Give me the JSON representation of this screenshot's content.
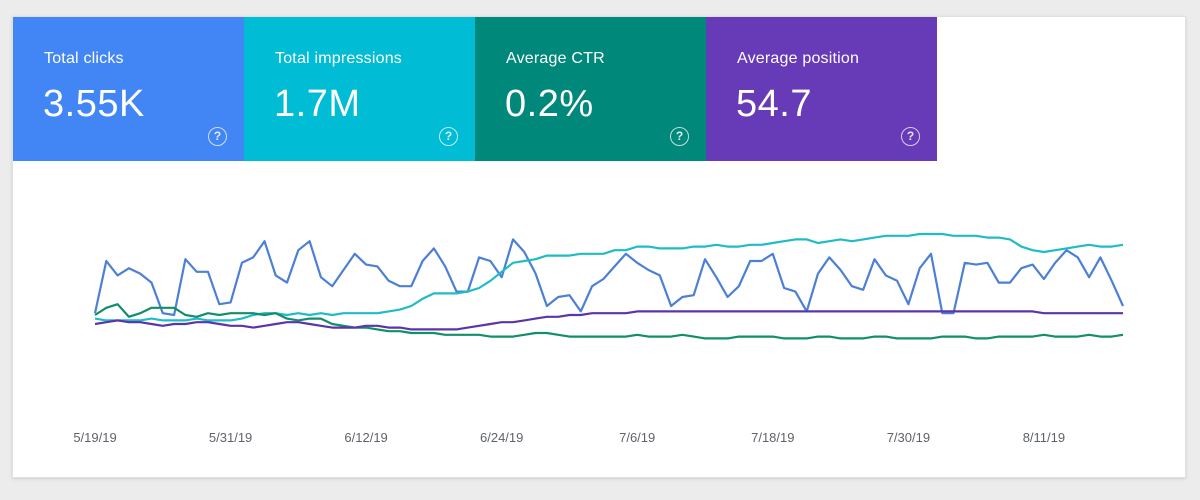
{
  "metrics": [
    {
      "label": "Total clicks",
      "value": "3.55K",
      "color": "#4285f4"
    },
    {
      "label": "Total impressions",
      "value": "1.7M",
      "color": "#00bcd4"
    },
    {
      "label": "Average CTR",
      "value": "0.2%",
      "color": "#00897b"
    },
    {
      "label": "Average position",
      "value": "54.7",
      "color": "#673ab7"
    }
  ],
  "help_icon": {
    "name": "help-circle-icon",
    "glyph": "?"
  },
  "chart_data": {
    "type": "line",
    "x_tick_labels": [
      "5/19/19",
      "5/31/19",
      "6/12/19",
      "6/24/19",
      "7/6/19",
      "7/18/19",
      "7/30/19",
      "8/11/19"
    ],
    "x_tick_index": [
      0,
      12,
      24,
      36,
      48,
      60,
      72,
      84
    ],
    "num_points": 92,
    "grid": false,
    "legend": "metric tiles above chart",
    "series": [
      {
        "color": "#4c7fd6",
        "values": [
          51,
          80,
          72,
          76,
          73,
          68,
          51,
          50,
          81,
          74,
          74,
          56,
          57,
          79,
          82,
          91,
          72,
          68,
          86,
          91,
          71,
          66,
          75,
          84,
          78,
          77,
          69,
          66,
          66,
          80,
          87,
          77,
          63,
          63,
          82,
          80,
          71,
          92,
          85,
          73,
          55,
          60,
          61,
          52,
          66,
          70,
          77,
          84,
          79,
          75,
          72,
          55,
          60,
          61,
          81,
          71,
          60,
          66,
          80,
          80,
          84,
          65,
          63,
          52,
          73,
          82,
          75,
          66,
          64,
          81,
          72,
          69,
          56,
          76,
          84,
          51,
          51,
          79,
          78,
          79,
          68,
          68,
          76,
          78,
          70,
          79,
          86,
          82,
          71,
          82,
          69,
          55
        ],
        "normalized": true
      },
      {
        "color": "#1fbcc6",
        "values": [
          48,
          47,
          47,
          47,
          47,
          48,
          47,
          47,
          47,
          48,
          47,
          47,
          47,
          48,
          50,
          51,
          51,
          50,
          51,
          50,
          51,
          50,
          51,
          51,
          51,
          51,
          52,
          53,
          55,
          59,
          62,
          62,
          62,
          63,
          65,
          69,
          74,
          79,
          80,
          81,
          83,
          83,
          83,
          84,
          84,
          84,
          86,
          86,
          88,
          88,
          87,
          87,
          87,
          88,
          88,
          89,
          88,
          88,
          89,
          89,
          90,
          91,
          92,
          92,
          90,
          91,
          92,
          91,
          92,
          93,
          94,
          94,
          94,
          95,
          95,
          95,
          94,
          94,
          94,
          93,
          93,
          92,
          88,
          86,
          85,
          86,
          87,
          88,
          89,
          88,
          88,
          89
        ],
        "normalized": true
      },
      {
        "color": "#118e6a",
        "values": [
          50,
          54,
          56,
          49,
          51,
          54,
          54,
          54,
          50,
          49,
          51,
          50,
          51,
          51,
          51,
          50,
          51,
          48,
          47,
          48,
          48,
          45,
          44,
          43,
          43,
          42,
          41,
          41,
          40,
          40,
          40,
          39,
          39,
          39,
          39,
          38,
          38,
          38,
          39,
          40,
          40,
          39,
          38,
          38,
          38,
          38,
          38,
          38,
          39,
          38,
          38,
          38,
          39,
          38,
          37,
          37,
          37,
          38,
          38,
          38,
          38,
          37,
          37,
          37,
          38,
          38,
          37,
          37,
          37,
          38,
          38,
          37,
          37,
          37,
          37,
          38,
          38,
          38,
          37,
          37,
          38,
          38,
          38,
          38,
          39,
          38,
          38,
          38,
          39,
          38,
          38,
          39
        ],
        "normalized": true
      },
      {
        "color": "#5b35a8",
        "values": [
          45,
          46,
          47,
          46,
          46,
          45,
          44,
          45,
          45,
          46,
          46,
          45,
          44,
          44,
          43,
          44,
          45,
          46,
          46,
          45,
          44,
          43,
          43,
          43,
          44,
          44,
          43,
          43,
          42,
          42,
          42,
          42,
          42,
          43,
          44,
          45,
          46,
          46,
          47,
          48,
          49,
          49,
          50,
          50,
          51,
          51,
          51,
          51,
          52,
          52,
          52,
          52,
          52,
          52,
          52,
          52,
          52,
          52,
          52,
          52,
          52,
          52,
          52,
          52,
          52,
          52,
          52,
          52,
          52,
          52,
          52,
          52,
          52,
          52,
          52,
          52,
          52,
          52,
          52,
          52,
          52,
          52,
          52,
          52,
          51,
          51,
          51,
          51,
          51,
          51,
          51,
          51
        ],
        "normalized": true
      }
    ]
  }
}
